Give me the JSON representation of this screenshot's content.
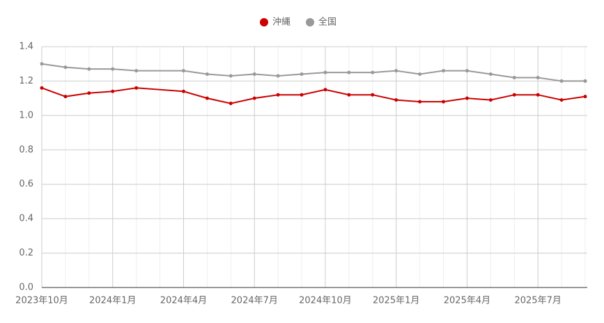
{
  "chart_data": {
    "type": "line",
    "categories": [
      "2023年10月",
      null,
      null,
      "2024年1月",
      null,
      null,
      "2024年4月",
      null,
      null,
      "2024年7月",
      null,
      null,
      "2024年10月",
      null,
      null,
      "2025年1月",
      null,
      null,
      "2025年4月",
      null,
      null,
      "2025年7月",
      null,
      null
    ],
    "series": [
      {
        "name": "沖縄",
        "color": "#cc0000",
        "values": [
          1.16,
          1.11,
          1.13,
          1.14,
          1.16,
          null,
          1.14,
          1.1,
          1.07,
          1.1,
          1.12,
          1.12,
          1.15,
          1.12,
          1.12,
          1.09,
          1.08,
          1.08,
          1.1,
          1.09,
          1.12,
          1.12,
          1.09,
          1.11
        ]
      },
      {
        "name": "全国",
        "color": "#999999",
        "values": [
          1.3,
          1.28,
          1.27,
          1.27,
          1.26,
          null,
          1.26,
          1.24,
          1.23,
          1.24,
          1.23,
          1.24,
          1.25,
          1.25,
          1.25,
          1.26,
          1.24,
          1.26,
          1.26,
          1.24,
          1.22,
          1.22,
          1.2,
          1.2
        ]
      }
    ],
    "ylim": [
      0,
      1.4
    ],
    "yticks": [
      {
        "value": 0,
        "label": "0.0"
      },
      {
        "value": 0.2,
        "label": "0.2"
      },
      {
        "value": 0.4,
        "label": "0.4"
      },
      {
        "value": 0.6,
        "label": "0.6"
      },
      {
        "value": 0.8,
        "label": "0.8"
      },
      {
        "value": 1,
        "label": "1.0"
      },
      {
        "value": 1.2,
        "label": "1.2"
      },
      {
        "value": 1.4,
        "label": "1.4"
      }
    ],
    "grid": true,
    "span_gaps": true,
    "legend": "top"
  }
}
